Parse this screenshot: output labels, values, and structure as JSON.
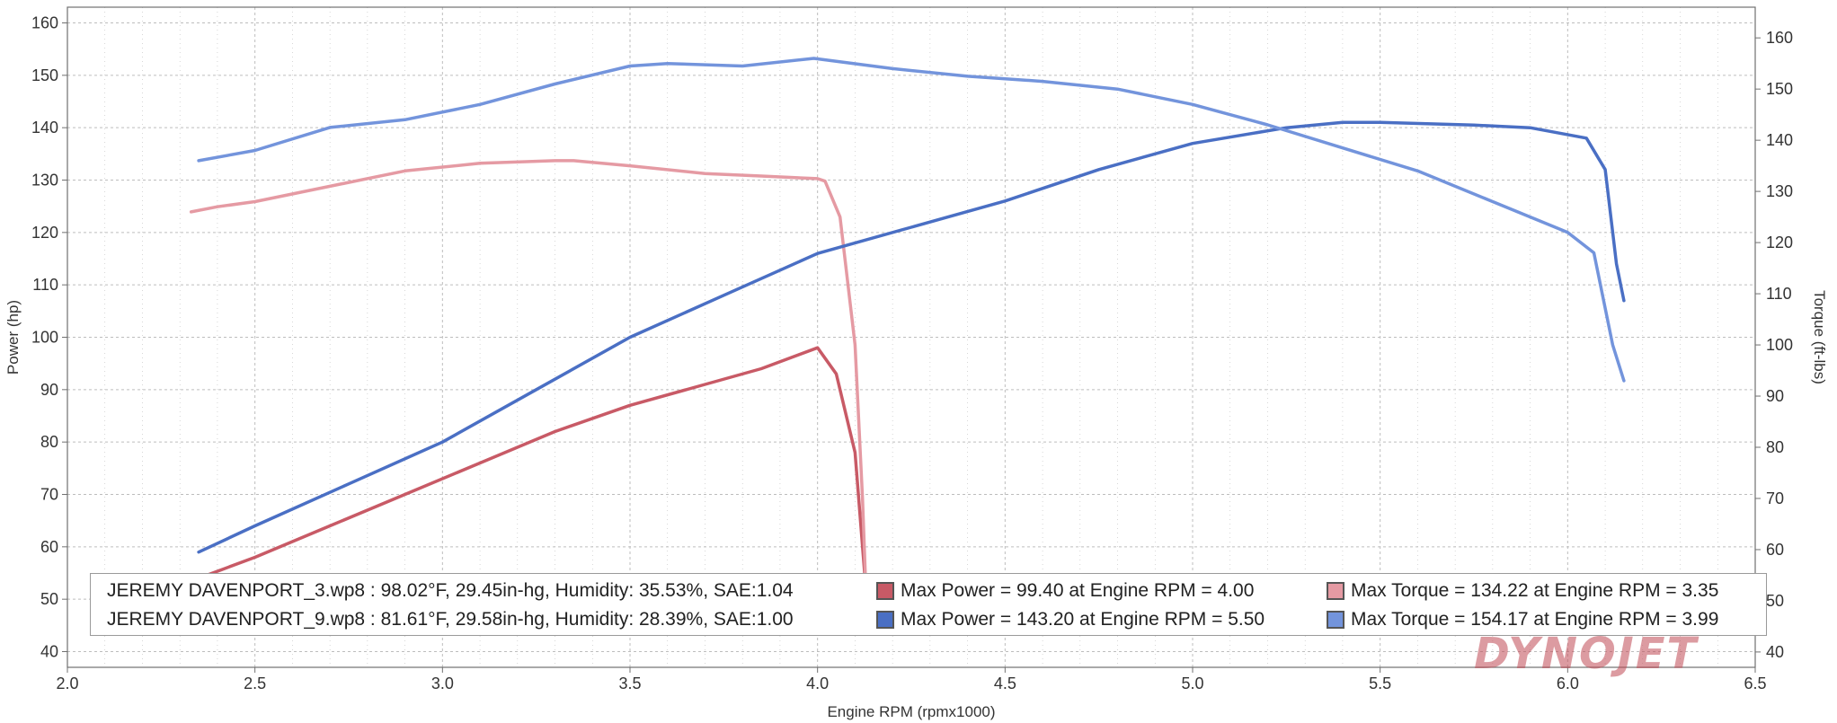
{
  "colors": {
    "run1_power": "#c85a66",
    "run1_torque": "#e59aa3",
    "run2_power": "#4a6fc4",
    "run2_torque": "#7394dc",
    "grid": "#bdbdbd",
    "brand": "#c04a55"
  },
  "brand": "DYNOJET",
  "legend": {
    "run1": {
      "label": "JEREMY DAVENPORT_3.wp8 : 98.02°F, 29.45in-hg, Humidity: 35.53%, SAE:1.04",
      "max_power": "Max Power = 99.40 at Engine RPM = 4.00",
      "max_torque": "Max Torque = 134.22 at Engine RPM =  3.35"
    },
    "run2": {
      "label": "JEREMY DAVENPORT_9.wp8 : 81.61°F, 29.58in-hg, Humidity: 28.39%, SAE:1.00",
      "max_power": "Max Power = 143.20 at Engine RPM = 5.50",
      "max_torque": "Max Torque = 154.17 at Engine RPM =  3.99"
    }
  },
  "chart_data": {
    "type": "line",
    "xlabel": "Engine RPM (rpmx1000)",
    "ylabel": "Power (hp)",
    "y2label": "Torque (ft-lbs)",
    "xlim": [
      2.0,
      6.5
    ],
    "ylim": [
      37,
      163
    ],
    "y2lim": [
      37,
      166
    ],
    "xticks": [
      "2.0",
      "2.5",
      "3.0",
      "3.5",
      "4.0",
      "4.5",
      "5.0",
      "5.5",
      "6.0",
      "6.5"
    ],
    "yticks": [
      "40",
      "50",
      "60",
      "70",
      "80",
      "90",
      "100",
      "110",
      "120",
      "130",
      "140",
      "150",
      "160"
    ],
    "y2ticks": [
      "40",
      "50",
      "60",
      "70",
      "80",
      "90",
      "100",
      "110",
      "120",
      "130",
      "140",
      "150",
      "160"
    ],
    "grid": true,
    "legend_position": "bottom",
    "series": [
      {
        "file": "JEREMY DAVENPORT_3.wp8",
        "measure": "power",
        "axis": "left",
        "x": [
          2.35,
          2.5,
          2.7,
          2.9,
          3.1,
          3.3,
          3.5,
          3.7,
          3.85,
          4.0,
          4.05,
          4.1,
          4.13
        ],
        "values": [
          54,
          58,
          64,
          70,
          76,
          82,
          87,
          91,
          94,
          98,
          93,
          78,
          51
        ]
      },
      {
        "file": "JEREMY DAVENPORT_3.wp8",
        "measure": "torque",
        "axis": "right",
        "x": [
          2.33,
          2.4,
          2.5,
          2.7,
          2.9,
          3.1,
          3.3,
          3.35,
          3.5,
          3.7,
          3.85,
          4.0,
          4.02,
          4.06,
          4.1,
          4.12,
          4.13
        ],
        "values": [
          126,
          127,
          128,
          131,
          134,
          135.5,
          136,
          136,
          135,
          133.5,
          133,
          132.5,
          132,
          125,
          100,
          70,
          50
        ]
      },
      {
        "file": "JEREMY DAVENPORT_9.wp8",
        "measure": "power",
        "axis": "left",
        "x": [
          2.35,
          2.5,
          2.75,
          3.0,
          3.25,
          3.5,
          3.75,
          4.0,
          4.25,
          4.5,
          4.75,
          5.0,
          5.25,
          5.4,
          5.5,
          5.75,
          5.9,
          6.05,
          6.1,
          6.13,
          6.15
        ],
        "values": [
          59,
          64,
          72,
          80,
          90,
          100,
          108,
          116,
          121,
          126,
          132,
          137,
          140,
          141,
          141,
          140.5,
          140,
          138,
          132,
          114,
          107
        ]
      },
      {
        "file": "JEREMY DAVENPORT_9.wp8",
        "measure": "torque",
        "axis": "right",
        "x": [
          2.35,
          2.5,
          2.7,
          2.9,
          3.1,
          3.3,
          3.5,
          3.6,
          3.8,
          3.99,
          4.2,
          4.4,
          4.6,
          4.8,
          5.0,
          5.2,
          5.4,
          5.6,
          5.8,
          6.0,
          6.07,
          6.12,
          6.15
        ],
        "values": [
          136,
          138,
          142.5,
          144,
          147,
          151,
          154.5,
          155,
          154.5,
          156,
          154,
          152.5,
          151.5,
          150,
          147,
          143,
          138.5,
          134,
          128,
          122,
          118,
          100,
          93
        ]
      }
    ]
  }
}
